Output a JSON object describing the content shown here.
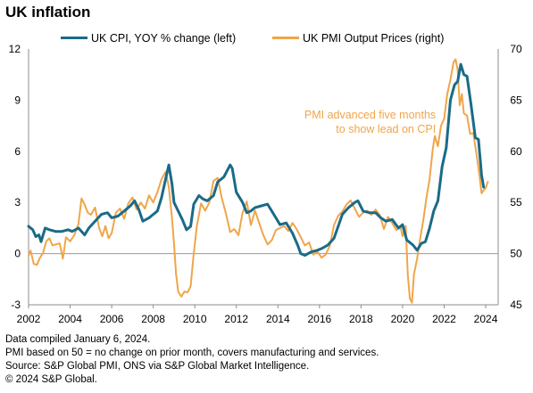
{
  "page": {
    "title": "UK inflation"
  },
  "footnotes": [
    "Data compiled January 6, 2024.",
    "PMI based on 50 = no change on prior month, covers manufacturing and services.",
    "Source: S&P Global PMI, ONS via S&P Global Market Intelligence.",
    "© 2024 S&P Global."
  ],
  "chart_data": {
    "type": "line",
    "title": "UK inflation",
    "xlim": [
      2002,
      2024.6
    ],
    "x_ticks": [
      2002,
      2004,
      2006,
      2008,
      2010,
      2012,
      2014,
      2016,
      2018,
      2020,
      2022,
      2024
    ],
    "y_left": {
      "lim": [
        -3,
        12
      ],
      "ticks": [
        -3,
        0,
        3,
        6,
        9,
        12
      ]
    },
    "y_right": {
      "lim": [
        45,
        70
      ],
      "ticks": [
        45,
        50,
        55,
        60,
        65,
        70
      ]
    },
    "grid": false,
    "legend_position": "top",
    "annotation": {
      "lines": [
        "PMI advanced  five months",
        "to show lead on CPI"
      ],
      "x": 2021.6,
      "y_left": 7.4,
      "color": "#f0a54a"
    },
    "series": [
      {
        "name": "UK CPI, YOY % change (left)",
        "axis": "left",
        "color": "#1a6b87",
        "points": [
          [
            2002.0,
            1.6
          ],
          [
            2002.2,
            1.4
          ],
          [
            2002.35,
            1.0
          ],
          [
            2002.5,
            1.1
          ],
          [
            2002.6,
            0.7
          ],
          [
            2002.8,
            1.5
          ],
          [
            2003.0,
            1.4
          ],
          [
            2003.3,
            1.3
          ],
          [
            2003.6,
            1.3
          ],
          [
            2003.9,
            1.4
          ],
          [
            2004.1,
            1.3
          ],
          [
            2004.4,
            1.5
          ],
          [
            2004.7,
            1.1
          ],
          [
            2004.9,
            1.5
          ],
          [
            2005.2,
            1.9
          ],
          [
            2005.5,
            2.3
          ],
          [
            2005.8,
            2.4
          ],
          [
            2006.0,
            2.1
          ],
          [
            2006.3,
            2.2
          ],
          [
            2006.6,
            2.5
          ],
          [
            2006.9,
            2.8
          ],
          [
            2007.1,
            3.1
          ],
          [
            2007.3,
            2.6
          ],
          [
            2007.5,
            1.9
          ],
          [
            2007.8,
            2.1
          ],
          [
            2008.0,
            2.3
          ],
          [
            2008.2,
            2.5
          ],
          [
            2008.4,
            3.3
          ],
          [
            2008.6,
            4.4
          ],
          [
            2008.75,
            5.2
          ],
          [
            2008.9,
            4.1
          ],
          [
            2009.0,
            3.0
          ],
          [
            2009.2,
            2.5
          ],
          [
            2009.4,
            2.0
          ],
          [
            2009.6,
            1.4
          ],
          [
            2009.8,
            1.6
          ],
          [
            2009.95,
            2.9
          ],
          [
            2010.2,
            3.4
          ],
          [
            2010.4,
            3.2
          ],
          [
            2010.6,
            3.1
          ],
          [
            2010.9,
            3.4
          ],
          [
            2011.1,
            4.2
          ],
          [
            2011.4,
            4.5
          ],
          [
            2011.7,
            5.2
          ],
          [
            2011.8,
            5.0
          ],
          [
            2012.0,
            3.6
          ],
          [
            2012.3,
            3.0
          ],
          [
            2012.5,
            2.4
          ],
          [
            2012.7,
            2.5
          ],
          [
            2012.9,
            2.7
          ],
          [
            2013.2,
            2.8
          ],
          [
            2013.5,
            2.9
          ],
          [
            2013.9,
            2.1
          ],
          [
            2014.1,
            1.7
          ],
          [
            2014.4,
            1.8
          ],
          [
            2014.7,
            1.2
          ],
          [
            2014.95,
            0.5
          ],
          [
            2015.1,
            0.0
          ],
          [
            2015.3,
            -0.1
          ],
          [
            2015.6,
            0.1
          ],
          [
            2015.9,
            0.2
          ],
          [
            2016.1,
            0.3
          ],
          [
            2016.4,
            0.5
          ],
          [
            2016.7,
            0.9
          ],
          [
            2016.9,
            1.6
          ],
          [
            2017.1,
            2.3
          ],
          [
            2017.4,
            2.7
          ],
          [
            2017.7,
            3.0
          ],
          [
            2017.85,
            3.1
          ],
          [
            2018.1,
            2.5
          ],
          [
            2018.4,
            2.4
          ],
          [
            2018.7,
            2.4
          ],
          [
            2018.95,
            2.1
          ],
          [
            2019.2,
            1.9
          ],
          [
            2019.5,
            2.0
          ],
          [
            2019.8,
            1.5
          ],
          [
            2020.0,
            1.7
          ],
          [
            2020.2,
            0.8
          ],
          [
            2020.5,
            0.5
          ],
          [
            2020.7,
            0.2
          ],
          [
            2020.9,
            0.6
          ],
          [
            2021.1,
            0.7
          ],
          [
            2021.3,
            1.5
          ],
          [
            2021.5,
            2.5
          ],
          [
            2021.7,
            3.1
          ],
          [
            2021.9,
            5.1
          ],
          [
            2022.1,
            6.2
          ],
          [
            2022.3,
            9.0
          ],
          [
            2022.5,
            9.9
          ],
          [
            2022.65,
            10.1
          ],
          [
            2022.8,
            11.1
          ],
          [
            2022.95,
            10.5
          ],
          [
            2023.1,
            10.4
          ],
          [
            2023.3,
            8.7
          ],
          [
            2023.5,
            6.8
          ],
          [
            2023.65,
            6.7
          ],
          [
            2023.8,
            4.6
          ],
          [
            2023.9,
            3.9
          ]
        ]
      },
      {
        "name": "UK PMI Output Prices (right)",
        "axis": "right",
        "color": "#f0a54a",
        "points": [
          [
            2002.0,
            49.8
          ],
          [
            2002.1,
            50.3
          ],
          [
            2002.25,
            49.0
          ],
          [
            2002.4,
            48.9
          ],
          [
            2002.55,
            49.6
          ],
          [
            2002.7,
            50.1
          ],
          [
            2002.85,
            51.2
          ],
          [
            2003.0,
            51.5
          ],
          [
            2003.15,
            50.8
          ],
          [
            2003.3,
            50.9
          ],
          [
            2003.5,
            51.0
          ],
          [
            2003.65,
            49.5
          ],
          [
            2003.8,
            51.6
          ],
          [
            2004.0,
            51.2
          ],
          [
            2004.2,
            51.8
          ],
          [
            2004.4,
            52.9
          ],
          [
            2004.55,
            55.4
          ],
          [
            2004.7,
            54.8
          ],
          [
            2004.85,
            54.0
          ],
          [
            2005.0,
            53.8
          ],
          [
            2005.2,
            54.5
          ],
          [
            2005.4,
            52.5
          ],
          [
            2005.55,
            51.7
          ],
          [
            2005.7,
            52.7
          ],
          [
            2005.85,
            51.5
          ],
          [
            2006.0,
            52.0
          ],
          [
            2006.2,
            54.0
          ],
          [
            2006.4,
            54.4
          ],
          [
            2006.6,
            53.4
          ],
          [
            2006.8,
            54.9
          ],
          [
            2007.0,
            55.5
          ],
          [
            2007.2,
            54.3
          ],
          [
            2007.4,
            55.0
          ],
          [
            2007.6,
            54.4
          ],
          [
            2007.8,
            55.7
          ],
          [
            2008.0,
            55.0
          ],
          [
            2008.2,
            56.0
          ],
          [
            2008.4,
            57.3
          ],
          [
            2008.6,
            58.0
          ],
          [
            2008.75,
            56.5
          ],
          [
            2008.9,
            53.5
          ],
          [
            2009.0,
            51.0
          ],
          [
            2009.1,
            48.0
          ],
          [
            2009.2,
            46.3
          ],
          [
            2009.35,
            45.8
          ],
          [
            2009.5,
            46.3
          ],
          [
            2009.65,
            46.2
          ],
          [
            2009.8,
            46.8
          ],
          [
            2009.95,
            50.0
          ],
          [
            2010.1,
            52.7
          ],
          [
            2010.3,
            54.9
          ],
          [
            2010.5,
            54.2
          ],
          [
            2010.7,
            55.0
          ],
          [
            2010.9,
            57.1
          ],
          [
            2011.1,
            57.4
          ],
          [
            2011.3,
            55.4
          ],
          [
            2011.5,
            53.9
          ],
          [
            2011.7,
            52.1
          ],
          [
            2011.9,
            52.4
          ],
          [
            2012.1,
            51.8
          ],
          [
            2012.3,
            54.0
          ],
          [
            2012.5,
            55.1
          ],
          [
            2012.7,
            52.8
          ],
          [
            2012.9,
            54.2
          ],
          [
            2013.1,
            53.0
          ],
          [
            2013.3,
            51.8
          ],
          [
            2013.5,
            50.9
          ],
          [
            2013.7,
            51.3
          ],
          [
            2013.9,
            52.3
          ],
          [
            2014.1,
            52.5
          ],
          [
            2014.3,
            52.7
          ],
          [
            2014.5,
            52.2
          ],
          [
            2014.7,
            53.0
          ],
          [
            2014.9,
            52.4
          ],
          [
            2015.1,
            51.6
          ],
          [
            2015.3,
            50.8
          ],
          [
            2015.5,
            51.1
          ],
          [
            2015.7,
            49.9
          ],
          [
            2015.9,
            50.2
          ],
          [
            2016.1,
            49.6
          ],
          [
            2016.3,
            49.9
          ],
          [
            2016.5,
            50.8
          ],
          [
            2016.7,
            52.8
          ],
          [
            2016.9,
            53.7
          ],
          [
            2017.1,
            54.1
          ],
          [
            2017.3,
            54.8
          ],
          [
            2017.5,
            55.2
          ],
          [
            2017.7,
            54.4
          ],
          [
            2017.9,
            53.6
          ],
          [
            2018.1,
            54.0
          ],
          [
            2018.3,
            54.2
          ],
          [
            2018.5,
            53.8
          ],
          [
            2018.7,
            54.3
          ],
          [
            2018.9,
            53.8
          ],
          [
            2019.1,
            52.4
          ],
          [
            2019.3,
            53.6
          ],
          [
            2019.5,
            53.0
          ],
          [
            2019.7,
            52.3
          ],
          [
            2019.9,
            52.6
          ],
          [
            2020.0,
            51.7
          ],
          [
            2020.15,
            52.7
          ],
          [
            2020.25,
            47.9
          ],
          [
            2020.35,
            45.6
          ],
          [
            2020.45,
            45.2
          ],
          [
            2020.55,
            48.0
          ],
          [
            2020.7,
            49.5
          ],
          [
            2020.85,
            51.5
          ],
          [
            2021.0,
            53.3
          ],
          [
            2021.15,
            55.5
          ],
          [
            2021.3,
            57.3
          ],
          [
            2021.45,
            60.2
          ],
          [
            2021.55,
            61.5
          ],
          [
            2021.7,
            60.5
          ],
          [
            2021.85,
            62.5
          ],
          [
            2022.0,
            63.2
          ],
          [
            2022.15,
            65.6
          ],
          [
            2022.3,
            67.0
          ],
          [
            2022.45,
            68.7
          ],
          [
            2022.55,
            69.0
          ],
          [
            2022.65,
            68.0
          ],
          [
            2022.75,
            64.5
          ],
          [
            2022.85,
            65.6
          ],
          [
            2022.95,
            63.7
          ],
          [
            2023.1,
            63.5
          ],
          [
            2023.25,
            61.7
          ],
          [
            2023.4,
            61.8
          ],
          [
            2023.55,
            59.8
          ],
          [
            2023.7,
            57.6
          ],
          [
            2023.8,
            55.9
          ],
          [
            2023.9,
            56.2
          ],
          [
            2024.0,
            56.4
          ],
          [
            2024.1,
            57.0
          ]
        ]
      }
    ]
  }
}
